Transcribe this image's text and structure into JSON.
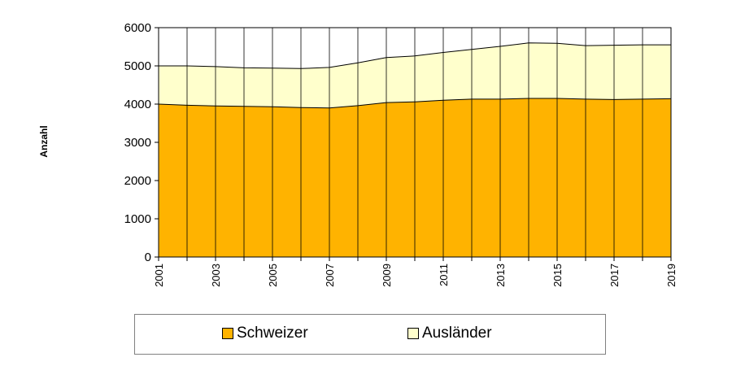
{
  "chart_data": {
    "type": "area",
    "stacked": true,
    "x": [
      "2001",
      "2002",
      "2003",
      "2004",
      "2005",
      "2006",
      "2007",
      "2008",
      "2009",
      "2010",
      "2011",
      "2012",
      "2013",
      "2014",
      "2015",
      "2016",
      "2017",
      "2018",
      "2019"
    ],
    "x_tick_labels": [
      "2001",
      "2003",
      "2005",
      "2007",
      "2009",
      "2011",
      "2013",
      "2015",
      "2017",
      "2019"
    ],
    "series": [
      {
        "name": "Schweizer",
        "color": "#FFB300",
        "values": [
          4000,
          3970,
          3950,
          3940,
          3930,
          3910,
          3900,
          3960,
          4040,
          4060,
          4100,
          4130,
          4130,
          4150,
          4150,
          4130,
          4120,
          4130,
          4140
        ]
      },
      {
        "name": "Ausländer",
        "color": "#FFFFCC",
        "values": [
          1000,
          1030,
          1030,
          1010,
          1010,
          1020,
          1060,
          1120,
          1180,
          1200,
          1250,
          1300,
          1380,
          1450,
          1440,
          1400,
          1420,
          1420,
          1410
        ]
      }
    ],
    "ylabel": "Anzahl",
    "xlabel": "",
    "ylim": [
      0,
      6000
    ],
    "y_ticks": [
      "0",
      "1000",
      "2000",
      "3000",
      "4000",
      "5000",
      "6000"
    ],
    "legend_position": "bottom",
    "grid": "vertical lines at each year",
    "grid_color": "#000000",
    "outline_color": "#000000"
  }
}
